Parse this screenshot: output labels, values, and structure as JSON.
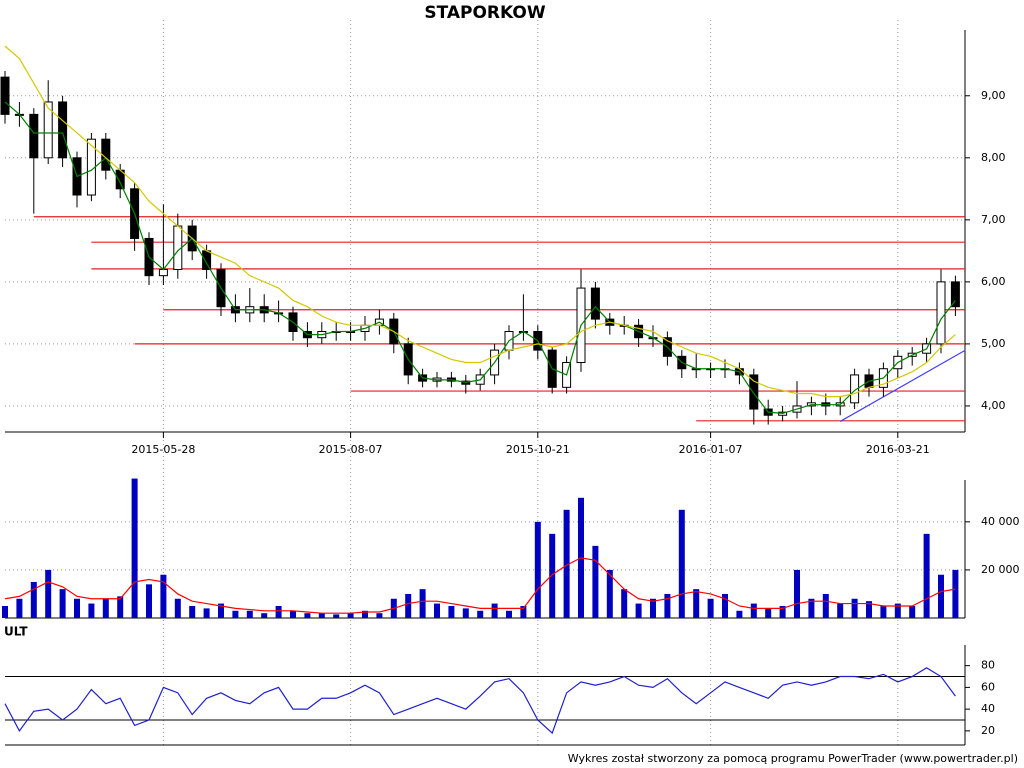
{
  "chart_data": [
    {
      "type": "candlestick",
      "title": "STAPORKOW",
      "categories": [
        null,
        null,
        null,
        null,
        null,
        null,
        null,
        null,
        null,
        null,
        null,
        "2015-05-28",
        null,
        null,
        null,
        null,
        null,
        null,
        null,
        null,
        null,
        null,
        null,
        null,
        "2015-08-07",
        null,
        null,
        null,
        null,
        null,
        null,
        null,
        null,
        null,
        null,
        null,
        null,
        "2015-10-21",
        null,
        null,
        null,
        null,
        null,
        null,
        null,
        null,
        null,
        null,
        null,
        "2016-01-07",
        null,
        null,
        null,
        null,
        null,
        null,
        null,
        null,
        null,
        null,
        null,
        null,
        "2016-03-21",
        null,
        null,
        null,
        null
      ],
      "open": [
        9.3,
        8.7,
        8.7,
        8.0,
        8.9,
        8.0,
        7.4,
        8.3,
        7.8,
        7.5,
        6.7,
        6.1,
        6.2,
        6.9,
        6.5,
        6.2,
        5.6,
        5.5,
        5.6,
        5.5,
        5.5,
        5.2,
        5.1,
        5.2,
        5.2,
        5.2,
        5.3,
        5.4,
        5.0,
        4.5,
        4.4,
        4.45,
        4.4,
        4.35,
        4.5,
        4.9,
        5.2,
        5.2,
        4.9,
        4.3,
        4.7,
        5.9,
        5.4,
        5.3,
        5.3,
        5.1,
        5.1,
        4.8,
        4.6,
        4.6,
        4.6,
        4.6,
        4.5,
        3.95,
        3.85,
        3.9,
        4.0,
        4.05,
        4.0,
        4.05,
        4.5,
        4.3,
        4.6,
        4.8,
        4.85,
        5.0,
        6.0
      ],
      "high": [
        9.4,
        8.9,
        8.8,
        9.25,
        9.0,
        8.1,
        8.4,
        8.4,
        7.9,
        7.6,
        6.8,
        7.25,
        7.1,
        7.0,
        6.6,
        6.3,
        5.8,
        5.9,
        5.8,
        5.7,
        5.6,
        5.35,
        5.35,
        5.35,
        5.35,
        5.45,
        5.55,
        5.5,
        5.1,
        4.6,
        4.55,
        4.55,
        4.5,
        4.6,
        5.0,
        5.3,
        5.8,
        5.3,
        4.95,
        4.8,
        6.2,
        6.0,
        5.5,
        5.45,
        5.4,
        5.3,
        5.2,
        4.9,
        4.85,
        4.7,
        4.75,
        4.7,
        4.6,
        4.1,
        4.0,
        4.4,
        4.15,
        4.2,
        4.15,
        4.6,
        4.6,
        4.7,
        4.9,
        4.95,
        5.1,
        6.2,
        6.1
      ],
      "low": [
        8.55,
        8.5,
        7.1,
        7.9,
        7.85,
        7.2,
        7.3,
        7.65,
        7.35,
        6.5,
        5.95,
        5.95,
        6.05,
        6.35,
        6.05,
        5.45,
        5.35,
        5.35,
        5.35,
        5.35,
        5.05,
        4.95,
        5.0,
        5.05,
        5.05,
        5.05,
        5.15,
        4.85,
        4.35,
        4.3,
        4.3,
        4.3,
        4.2,
        4.25,
        4.35,
        4.75,
        5.05,
        4.75,
        4.2,
        4.2,
        4.55,
        5.25,
        5.15,
        5.15,
        4.95,
        4.95,
        4.65,
        4.45,
        4.45,
        4.45,
        4.45,
        4.35,
        3.7,
        3.7,
        3.75,
        3.8,
        3.85,
        3.85,
        3.85,
        3.95,
        4.15,
        4.15,
        4.45,
        4.65,
        4.7,
        4.85,
        5.45
      ],
      "close": [
        8.7,
        8.7,
        8.0,
        8.9,
        8.0,
        7.4,
        8.3,
        7.8,
        7.5,
        6.7,
        6.1,
        6.2,
        6.9,
        6.5,
        6.2,
        5.6,
        5.5,
        5.6,
        5.5,
        5.5,
        5.2,
        5.1,
        5.2,
        5.2,
        5.2,
        5.3,
        5.4,
        5.0,
        4.5,
        4.4,
        4.45,
        4.4,
        4.35,
        4.5,
        4.9,
        5.2,
        5.2,
        4.9,
        4.3,
        4.7,
        5.9,
        5.4,
        5.3,
        5.3,
        5.1,
        5.1,
        4.8,
        4.6,
        4.6,
        4.6,
        4.6,
        4.5,
        3.95,
        3.85,
        3.9,
        4.0,
        4.05,
        4.0,
        4.05,
        4.5,
        4.3,
        4.6,
        4.8,
        4.85,
        5.0,
        6.0,
        5.6
      ],
      "up_color": "#ffffff",
      "down_color": "#000000",
      "lines": [
        {
          "color": "#008000",
          "values": [
            8.9,
            8.7,
            8.4,
            8.4,
            8.4,
            7.7,
            7.8,
            8.0,
            7.6,
            7.1,
            6.4,
            6.2,
            6.5,
            6.7,
            6.3,
            5.9,
            5.55,
            5.55,
            5.55,
            5.5,
            5.35,
            5.15,
            5.15,
            5.2,
            5.2,
            5.25,
            5.35,
            5.2,
            4.75,
            4.45,
            4.42,
            4.42,
            4.38,
            4.42,
            4.7,
            5.05,
            5.2,
            5.05,
            4.6,
            4.5,
            5.3,
            5.6,
            5.35,
            5.3,
            5.2,
            5.1,
            4.95,
            4.7,
            4.6,
            4.6,
            4.6,
            4.55,
            4.2,
            3.9,
            3.88,
            3.95,
            4.02,
            4.02,
            4.02,
            4.25,
            4.4,
            4.45,
            4.7,
            4.82,
            4.92,
            5.4,
            5.7
          ]
        },
        {
          "color": "#d4c800",
          "values": [
            9.8,
            9.6,
            9.2,
            8.8,
            8.6,
            8.4,
            8.2,
            8.0,
            7.8,
            7.6,
            7.3,
            7.1,
            6.9,
            6.7,
            6.5,
            6.4,
            6.3,
            6.1,
            6.0,
            5.9,
            5.7,
            5.6,
            5.45,
            5.35,
            5.3,
            5.3,
            5.3,
            5.2,
            5.05,
            4.95,
            4.85,
            4.75,
            4.7,
            4.7,
            4.8,
            4.9,
            4.95,
            5.0,
            4.95,
            5.0,
            5.2,
            5.3,
            5.35,
            5.3,
            5.25,
            5.2,
            5.05,
            4.95,
            4.85,
            4.8,
            4.7,
            4.6,
            4.4,
            4.3,
            4.25,
            4.2,
            4.2,
            4.15,
            4.15,
            4.2,
            4.3,
            4.35,
            4.45,
            4.55,
            4.7,
            4.95,
            5.15
          ]
        }
      ],
      "hlines": [
        {
          "value": 7.05,
          "from": 2
        },
        {
          "value": 6.64,
          "from": 6
        },
        {
          "value": 6.21,
          "from": 6
        },
        {
          "value": 5.55,
          "from": 11
        },
        {
          "value": 5.0,
          "from": 9
        },
        {
          "value": 4.24,
          "from": 24
        },
        {
          "value": 3.76,
          "from": 48
        }
      ],
      "hline_color": "#e02020",
      "trendline": {
        "x": [
          58,
          66.7
        ],
        "y": [
          3.75,
          4.9
        ],
        "color": "#4040ff"
      },
      "ylim": [
        3.58,
        10.06
      ],
      "yticks": [
        {
          "value": 4,
          "label": "4,00"
        },
        {
          "value": 5,
          "label": "5,00"
        },
        {
          "value": 6,
          "label": "6,00"
        },
        {
          "value": 7,
          "label": "7,00"
        },
        {
          "value": 8,
          "label": "8,00"
        },
        {
          "value": 9,
          "label": "9,00"
        }
      ],
      "grid": true
    },
    {
      "type": "bar",
      "color": "#0000c0",
      "values": [
        5000,
        8000,
        15000,
        20000,
        12000,
        8000,
        6000,
        8000,
        9000,
        58000,
        14000,
        18000,
        8000,
        5000,
        4000,
        6000,
        3000,
        3000,
        2000,
        5000,
        3000,
        2000,
        2000,
        1500,
        2000,
        3000,
        2000,
        8000,
        10000,
        12000,
        6000,
        5000,
        4000,
        3000,
        6000,
        3000,
        5000,
        40000,
        35000,
        45000,
        50000,
        30000,
        20000,
        12000,
        6000,
        8000,
        10000,
        45000,
        12000,
        8000,
        10000,
        3000,
        6000,
        4000,
        5000,
        20000,
        8000,
        10000,
        6000,
        8000,
        7000,
        5000,
        6000,
        5000,
        35000,
        18000,
        20000
      ],
      "line": {
        "color": "#ff0000",
        "values": [
          8000,
          9000,
          12000,
          15000,
          13000,
          9000,
          8000,
          8000,
          8000,
          15000,
          16000,
          15000,
          10000,
          7000,
          6000,
          5000,
          4000,
          3500,
          3000,
          3000,
          3000,
          2500,
          2000,
          2000,
          2000,
          2500,
          2500,
          4000,
          6000,
          7000,
          7000,
          6000,
          5000,
          4000,
          4000,
          4000,
          4000,
          12000,
          18000,
          22000,
          25000,
          24000,
          18000,
          12000,
          8000,
          7000,
          8000,
          10000,
          11000,
          10000,
          8000,
          5000,
          4000,
          4000,
          4000,
          6000,
          7000,
          7000,
          6000,
          6000,
          6000,
          5000,
          5000,
          5000,
          8000,
          11000,
          12000
        ]
      },
      "ylim": [
        0,
        57400
      ],
      "yticks": [
        {
          "value": 20000,
          "label": "20 000"
        },
        {
          "value": 40000,
          "label": "40 000"
        }
      ],
      "grid": true
    },
    {
      "type": "line",
      "title": "ULT",
      "color": "#2020d0",
      "values": [
        45,
        20,
        38,
        40,
        30,
        40,
        58,
        45,
        50,
        25,
        30,
        60,
        55,
        35,
        50,
        55,
        48,
        45,
        55,
        60,
        40,
        40,
        50,
        50,
        55,
        62,
        55,
        35,
        40,
        45,
        50,
        45,
        40,
        52,
        65,
        68,
        55,
        30,
        18,
        55,
        65,
        62,
        65,
        70,
        62,
        60,
        68,
        55,
        45,
        55,
        65,
        60,
        55,
        50,
        62,
        65,
        62,
        65,
        70,
        70,
        68,
        72,
        65,
        70,
        78,
        70,
        52
      ],
      "hlines": [
        70,
        30
      ],
      "ylim": [
        7,
        99
      ],
      "yticks": [
        20,
        40,
        60,
        80
      ],
      "grid": false
    }
  ],
  "footer": "Wykres został stworzony za pomocą programu PowerTrader (www.powertrader.pl)"
}
